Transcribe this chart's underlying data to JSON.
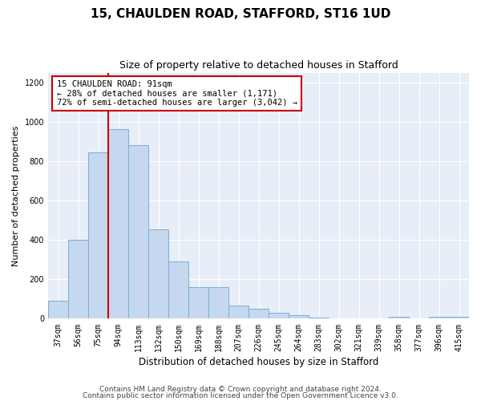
{
  "title1": "15, CHAULDEN ROAD, STAFFORD, ST16 1UD",
  "title2": "Size of property relative to detached houses in Stafford",
  "xlabel": "Distribution of detached houses by size in Stafford",
  "ylabel": "Number of detached properties",
  "categories": [
    "37sqm",
    "56sqm",
    "75sqm",
    "94sqm",
    "113sqm",
    "132sqm",
    "150sqm",
    "169sqm",
    "188sqm",
    "207sqm",
    "226sqm",
    "245sqm",
    "264sqm",
    "283sqm",
    "302sqm",
    "321sqm",
    "339sqm",
    "358sqm",
    "377sqm",
    "396sqm",
    "415sqm"
  ],
  "values": [
    90,
    400,
    845,
    965,
    880,
    455,
    290,
    160,
    160,
    65,
    50,
    30,
    20,
    5,
    0,
    0,
    0,
    10,
    0,
    10,
    10
  ],
  "bar_color": "#c5d8f0",
  "bar_edge_color": "#7aadd4",
  "vline_color": "#cc0000",
  "annotation_text": "15 CHAULDEN ROAD: 91sqm\n← 28% of detached houses are smaller (1,171)\n72% of semi-detached houses are larger (3,042) →",
  "annotation_box_color": "#ffffff",
  "annotation_box_edge": "#cc0000",
  "ylim": [
    0,
    1250
  ],
  "yticks": [
    0,
    200,
    400,
    600,
    800,
    1000,
    1200
  ],
  "footer1": "Contains HM Land Registry data © Crown copyright and database right 2024.",
  "footer2": "Contains public sector information licensed under the Open Government Licence v3.0.",
  "bg_color": "#ffffff",
  "plot_bg_color": "#e8eef7",
  "title1_fontsize": 11,
  "title2_fontsize": 9,
  "xlabel_fontsize": 8.5,
  "ylabel_fontsize": 8,
  "tick_fontsize": 7,
  "annotation_fontsize": 7.5,
  "footer_fontsize": 6.5
}
